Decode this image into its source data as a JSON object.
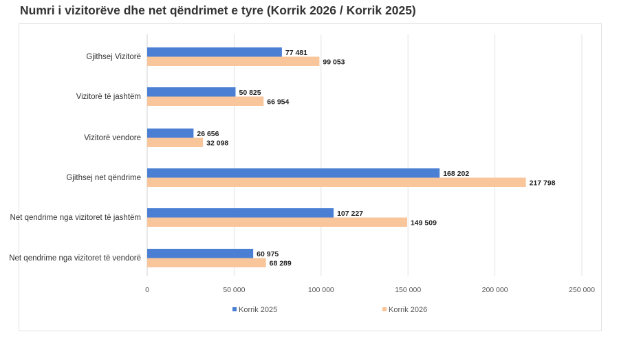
{
  "page": {
    "title": "Numri i vizitorëve dhe net qëndrimet e tyre (Korrik 2026 / Korrik 2025)"
  },
  "chart_data": {
    "type": "bar",
    "orientation": "horizontal",
    "categories": [
      "Gjithsej Vizitorë",
      "Vizitorë të jashtëm",
      "Vizitorë vendore",
      "Gjithsej net qëndrime",
      "Net qendrime nga  vizitoret të jashtëm",
      "Net qendrime nga  vizitoret të vendorë"
    ],
    "series": [
      {
        "name": "Korrik  2025",
        "color": "#4a7fd4",
        "values": [
          77481,
          50825,
          26656,
          168202,
          107227,
          60975
        ],
        "labels": [
          "77 481",
          "50 825",
          "26 656",
          "168 202",
          "107 227",
          "60 975"
        ]
      },
      {
        "name": "Korrik  2026",
        "color": "#f9c59a",
        "values": [
          99053,
          66954,
          32098,
          217798,
          149509,
          68289
        ],
        "labels": [
          "99 053",
          "66 954",
          "32 098",
          "217 798",
          "149 509",
          "68 289"
        ]
      }
    ],
    "xlim": [
      0,
      250000
    ],
    "xticks": [
      0,
      50000,
      100000,
      150000,
      200000,
      250000
    ],
    "xtick_labels": [
      "0",
      "50 000",
      "100 000",
      "150 000",
      "200 000",
      "250 000"
    ],
    "grid": true,
    "legend_position": "bottom"
  }
}
